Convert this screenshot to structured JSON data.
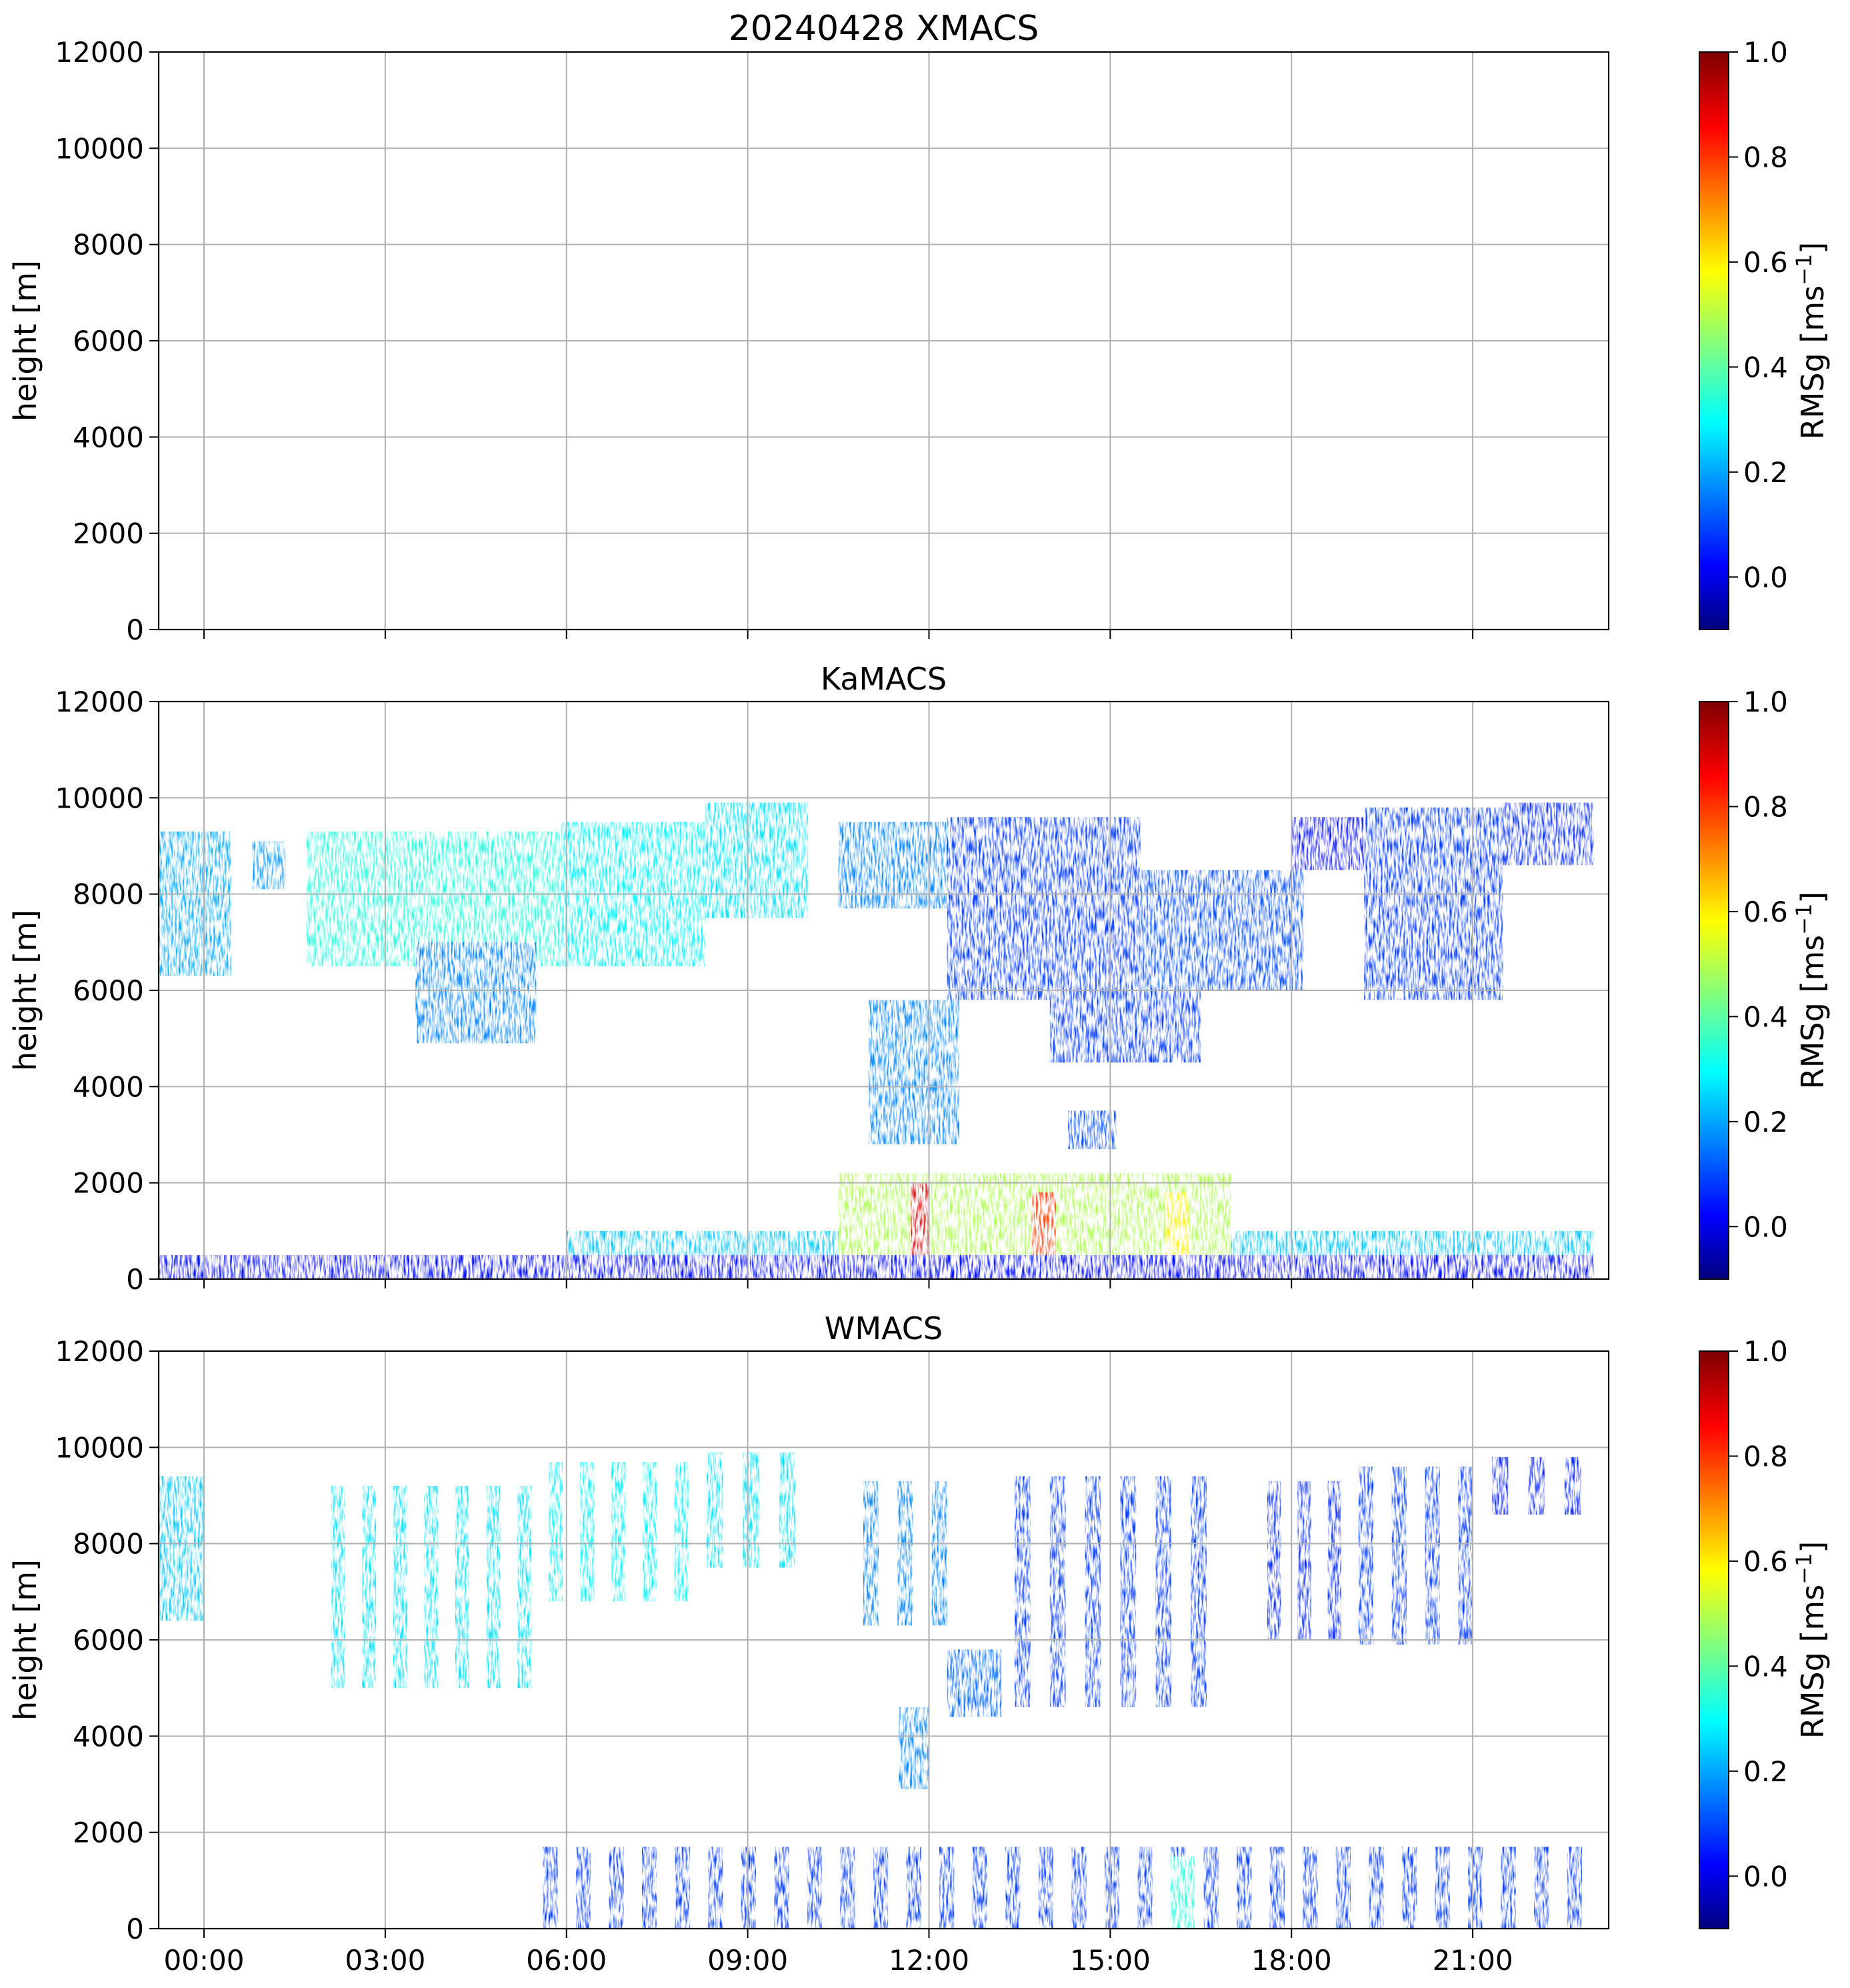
{
  "chart_data": [
    {
      "type": "heatmap",
      "title": "20240428 XMACS",
      "xlabel": "",
      "ylabel": "height [m]",
      "xlim": [
        "23:15",
        "23:15+1d"
      ],
      "ylim": [
        0,
        12000
      ],
      "yticks": [
        0,
        2000,
        4000,
        6000,
        8000,
        10000,
        12000
      ],
      "xticks": [],
      "grid": true,
      "colorbar": {
        "label": "RMSg [ms",
        "label_sup": "−1",
        "label_end": "]",
        "vmin": -0.1,
        "vmax": 1.0,
        "ticks": [
          0.0,
          0.2,
          0.4,
          0.6,
          0.8,
          1.0
        ],
        "tick_labels": [
          "0.0",
          "0.2",
          "0.4",
          "0.6",
          "0.8",
          "1.0"
        ],
        "colormap": "jet"
      },
      "regions": []
    },
    {
      "type": "heatmap",
      "title": "KaMACS",
      "xlabel": "",
      "ylabel": "height [m]",
      "ylim": [
        0,
        12000
      ],
      "yticks": [
        0,
        2000,
        4000,
        6000,
        8000,
        10000,
        12000
      ],
      "xticks": [],
      "grid": true,
      "colorbar": {
        "label": "RMSg [ms",
        "label_sup": "−1",
        "label_end": "]",
        "vmin": -0.1,
        "vmax": 1.0,
        "ticks": [
          0.0,
          0.2,
          0.4,
          0.6,
          0.8,
          1.0
        ],
        "tick_labels": [
          "0.0",
          "0.2",
          "0.4",
          "0.6",
          "0.8",
          "1.0"
        ],
        "colormap": "jet"
      },
      "regions": [
        {
          "t0": -0.75,
          "t1": 0.45,
          "h0": 6300,
          "h1": 9300,
          "v": 0.22
        },
        {
          "t0": 0.8,
          "t1": 1.35,
          "h0": 8100,
          "h1": 9100,
          "v": 0.2
        },
        {
          "t0": 1.7,
          "t1": 5.9,
          "h0": 6500,
          "h1": 9300,
          "v": 0.35
        },
        {
          "t0": 3.5,
          "t1": 5.5,
          "h0": 4900,
          "h1": 7000,
          "v": 0.18
        },
        {
          "t0": 5.9,
          "t1": 8.3,
          "h0": 6500,
          "h1": 9500,
          "v": 0.3
        },
        {
          "t0": 8.3,
          "t1": 10.0,
          "h0": 7500,
          "h1": 9900,
          "v": 0.28
        },
        {
          "t0": 10.5,
          "t1": 13.0,
          "h0": 7700,
          "h1": 9500,
          "v": 0.18
        },
        {
          "t0": 12.3,
          "t1": 15.5,
          "h0": 5800,
          "h1": 9600,
          "v": 0.1
        },
        {
          "t0": 14.0,
          "t1": 16.5,
          "h0": 4500,
          "h1": 7000,
          "v": 0.1
        },
        {
          "t0": 15.5,
          "t1": 18.2,
          "h0": 6000,
          "h1": 8500,
          "v": 0.12
        },
        {
          "t0": 18.0,
          "t1": 20.5,
          "h0": 8500,
          "h1": 9600,
          "v": 0.05
        },
        {
          "t0": 19.2,
          "t1": 21.5,
          "h0": 5800,
          "h1": 9800,
          "v": 0.1
        },
        {
          "t0": 21.5,
          "t1": 23.0,
          "h0": 8600,
          "h1": 9900,
          "v": 0.08
        },
        {
          "t0": 11.0,
          "t1": 12.5,
          "h0": 2800,
          "h1": 5800,
          "v": 0.18
        },
        {
          "t0": 14.3,
          "t1": 15.1,
          "h0": 2700,
          "h1": 3500,
          "v": 0.12
        },
        {
          "t0": 6.0,
          "t1": 23.0,
          "h0": 0,
          "h1": 1000,
          "v": 0.25
        },
        {
          "t0": 10.5,
          "t1": 17.0,
          "h0": 0,
          "h1": 2200,
          "v": 0.5
        },
        {
          "t0": 11.7,
          "t1": 12.0,
          "h0": 0,
          "h1": 2000,
          "v": 0.9
        },
        {
          "t0": 13.7,
          "t1": 14.1,
          "h0": 0,
          "h1": 1800,
          "v": 0.8
        },
        {
          "t0": 15.9,
          "t1": 16.3,
          "h0": 0,
          "h1": 1800,
          "v": 0.6
        },
        {
          "t0": -0.75,
          "t1": 23.0,
          "h0": 0,
          "h1": 500,
          "v": 0.05
        }
      ]
    },
    {
      "type": "heatmap",
      "title": "WMACS",
      "xlabel": "",
      "ylabel": "height [m]",
      "ylim": [
        0,
        12000
      ],
      "yticks": [
        0,
        2000,
        4000,
        6000,
        8000,
        10000,
        12000
      ],
      "xticks": [
        "00:00",
        "03:00",
        "06:00",
        "09:00",
        "12:00",
        "15:00",
        "18:00",
        "21:00"
      ],
      "grid": true,
      "colorbar": {
        "label": "RMSg [ms",
        "label_sup": "−1",
        "label_end": "]",
        "vmin": -0.1,
        "vmax": 1.0,
        "ticks": [
          0.0,
          0.2,
          0.4,
          0.6,
          0.8,
          1.0
        ],
        "tick_labels": [
          "0.0",
          "0.2",
          "0.4",
          "0.6",
          "0.8",
          "1.0"
        ],
        "colormap": "jet"
      },
      "regions": [
        {
          "t0": -0.75,
          "t1": 0.0,
          "h0": 6400,
          "h1": 9400,
          "v": 0.25
        },
        {
          "t0": 2.0,
          "t1": 5.6,
          "h0": 5000,
          "h1": 9200,
          "v": 0.28,
          "striped": true
        },
        {
          "t0": 5.6,
          "t1": 8.2,
          "h0": 6800,
          "h1": 9700,
          "v": 0.3,
          "striped": true
        },
        {
          "t0": 8.2,
          "t1": 10.0,
          "h0": 7500,
          "h1": 9900,
          "v": 0.28,
          "striped": true
        },
        {
          "t0": 10.8,
          "t1": 12.5,
          "h0": 6300,
          "h1": 9300,
          "v": 0.18,
          "striped": true
        },
        {
          "t0": 11.5,
          "t1": 12.0,
          "h0": 2900,
          "h1": 4600,
          "v": 0.18
        },
        {
          "t0": 12.3,
          "t1": 13.2,
          "h0": 4400,
          "h1": 5800,
          "v": 0.15
        },
        {
          "t0": 13.3,
          "t1": 16.8,
          "h0": 4600,
          "h1": 9400,
          "v": 0.1,
          "striped": true
        },
        {
          "t0": 17.5,
          "t1": 19.0,
          "h0": 6000,
          "h1": 9300,
          "v": 0.08,
          "striped": true
        },
        {
          "t0": 19.0,
          "t1": 21.2,
          "h0": 5900,
          "h1": 9600,
          "v": 0.1,
          "striped": true
        },
        {
          "t0": 21.2,
          "t1": 23.0,
          "h0": 8600,
          "h1": 9800,
          "v": 0.07,
          "striped": true
        },
        {
          "t0": 5.5,
          "t1": 23.0,
          "h0": 0,
          "h1": 1700,
          "v": 0.1,
          "striped": true
        },
        {
          "t0": 16.0,
          "t1": 16.4,
          "h0": 0,
          "h1": 1500,
          "v": 0.35
        }
      ]
    }
  ]
}
